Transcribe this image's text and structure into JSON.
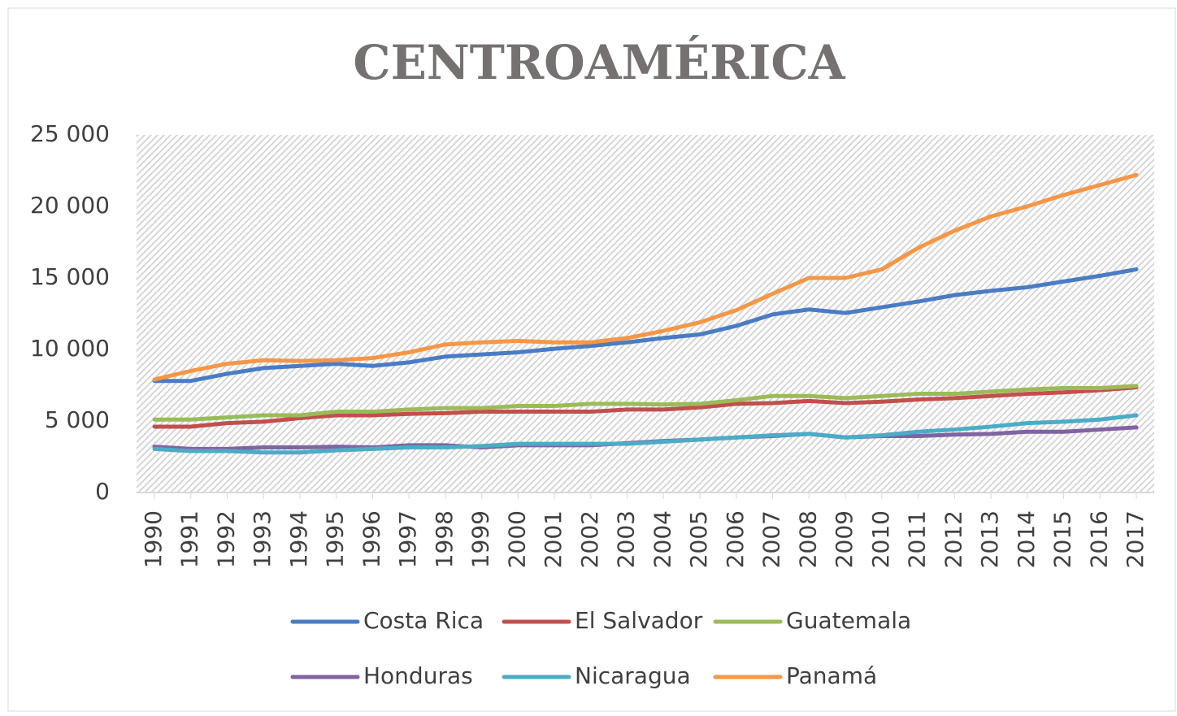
{
  "chart_data": {
    "type": "line",
    "title": "CENTROAMÉRICA",
    "categories": [
      "1990",
      "1991",
      "1992",
      "1993",
      "1994",
      "1995",
      "1996",
      "1997",
      "1998",
      "1999",
      "2000",
      "2001",
      "2002",
      "2003",
      "2004",
      "2005",
      "2006",
      "2007",
      "2008",
      "2009",
      "2010",
      "2011",
      "2012",
      "2013",
      "2014",
      "2015",
      "2016",
      "2017"
    ],
    "series": [
      {
        "name": "Costa Rica",
        "color": "#4a7cc4",
        "values": [
          7800,
          7800,
          8300,
          8700,
          8850,
          9000,
          8850,
          9100,
          9500,
          9650,
          9800,
          10050,
          10250,
          10500,
          10800,
          11050,
          11650,
          12450,
          12800,
          12550,
          12950,
          13350,
          13800,
          14100,
          14350,
          14750,
          15150,
          15600
        ]
      },
      {
        "name": "El Salvador",
        "color": "#c0504d",
        "values": [
          4600,
          4600,
          4850,
          4950,
          5200,
          5400,
          5400,
          5500,
          5550,
          5650,
          5650,
          5650,
          5650,
          5800,
          5800,
          5950,
          6200,
          6250,
          6400,
          6250,
          6350,
          6500,
          6600,
          6750,
          6900,
          7000,
          7150,
          7350
        ]
      },
      {
        "name": "Guatemala",
        "color": "#9bbb59",
        "values": [
          5100,
          5100,
          5250,
          5400,
          5400,
          5650,
          5650,
          5800,
          5900,
          5900,
          6050,
          6050,
          6200,
          6200,
          6150,
          6200,
          6450,
          6750,
          6750,
          6600,
          6750,
          6900,
          6900,
          7050,
          7200,
          7300,
          7300,
          7450
        ]
      },
      {
        "name": "Honduras",
        "color": "#8064a2",
        "values": [
          3200,
          3050,
          3050,
          3150,
          3150,
          3200,
          3150,
          3300,
          3300,
          3150,
          3300,
          3300,
          3300,
          3450,
          3600,
          3700,
          3850,
          3950,
          4100,
          3850,
          3950,
          3950,
          4050,
          4100,
          4250,
          4250,
          4400,
          4550
        ]
      },
      {
        "name": "Nicaragua",
        "color": "#4bacc6",
        "values": [
          3050,
          2900,
          2900,
          2800,
          2800,
          2950,
          3050,
          3150,
          3150,
          3250,
          3400,
          3400,
          3400,
          3400,
          3550,
          3700,
          3850,
          4000,
          4100,
          3850,
          4000,
          4250,
          4400,
          4600,
          4850,
          4950,
          5100,
          5400
        ]
      },
      {
        "name": "Panamá",
        "color": "#f79646",
        "values": [
          7900,
          8500,
          9000,
          9250,
          9200,
          9250,
          9400,
          9800,
          10350,
          10500,
          10600,
          10500,
          10500,
          10800,
          11300,
          11900,
          12750,
          13900,
          15000,
          15000,
          15600,
          17100,
          18300,
          19300,
          20000,
          20800,
          21500,
          22200
        ]
      }
    ],
    "ylim": [
      0,
      25000
    ],
    "yticks": [
      0,
      {
        "value": 5000,
        "label": "5 000"
      },
      {
        "value": 10000,
        "label": "10 000"
      },
      {
        "value": 15000,
        "label": "15 000"
      },
      {
        "value": 20000,
        "label": "20 000"
      },
      {
        "value": 25000,
        "label": "25 000"
      }
    ],
    "grid": false
  }
}
